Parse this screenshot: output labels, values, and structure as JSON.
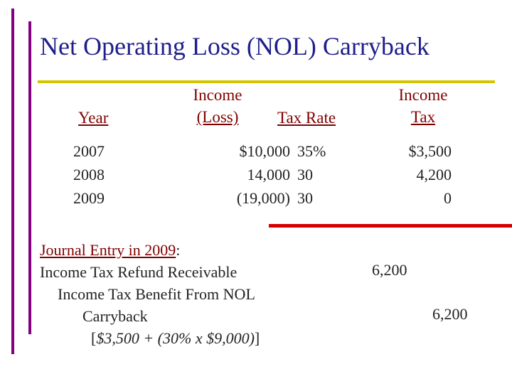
{
  "title": "Net Operating Loss (NOL) Carryback",
  "table": {
    "headers": {
      "year": "Year",
      "income_line1": "Income",
      "income_line2": "(Loss)",
      "tax_rate": "Tax Rate",
      "income_tax_line1": "Income",
      "income_tax_line2": "Tax"
    },
    "rows": [
      {
        "year": "2007",
        "income": "$10,000",
        "rate": "35%",
        "tax": "$3,500"
      },
      {
        "year": "2008",
        "income": "14,000",
        "rate": "30",
        "tax": "4,200"
      },
      {
        "year": "2009",
        "income": "(19,000)",
        "rate": "30",
        "tax": "0"
      }
    ]
  },
  "journal": {
    "heading": "Journal Entry in 2009",
    "heading_suffix": ":",
    "debit_account": "Income Tax Refund Receivable",
    "credit_account_line1": "Income Tax Benefit From NOL",
    "credit_account_line2": "Carryback",
    "calc_open": "[",
    "calc": "$3,500 + (30% x $9,000)",
    "calc_close": "]",
    "debit_amount": "6,200",
    "credit_amount": "6,200"
  },
  "colors": {
    "title": "#1f1f8a",
    "header": "#800000",
    "accent_purple": "#800080",
    "accent_yellow": "#d4c400",
    "accent_red": "#d40000"
  }
}
